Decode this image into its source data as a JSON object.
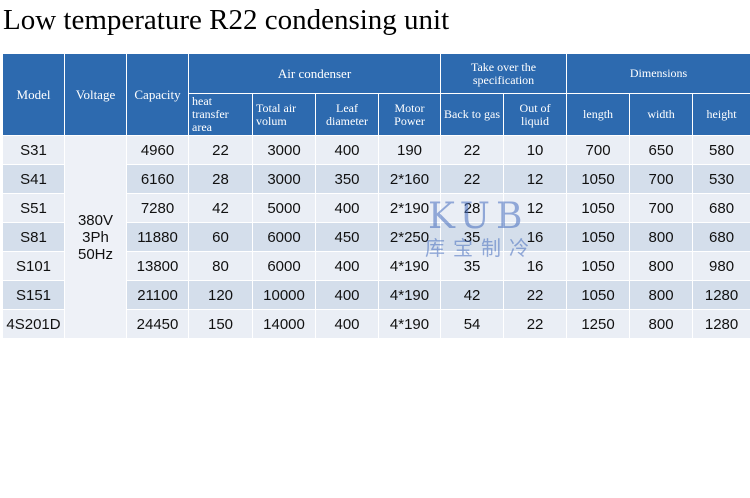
{
  "title": "Low temperature R22 condensing unit",
  "header": {
    "model": "Model",
    "voltage": "Voltage",
    "capacity": "Capacity",
    "air_condenser": {
      "title": "Air condenser",
      "columns": [
        "heat transfer area",
        "Total air volum",
        "Leaf diameter",
        "Motor Power"
      ]
    },
    "take_over": {
      "title": "Take over the specification",
      "columns": [
        "Back to gas",
        "Out of liquid"
      ]
    },
    "dimensions": {
      "title": "Dimensions",
      "columns": [
        "length",
        "width",
        "height"
      ]
    }
  },
  "voltage": [
    "380V",
    "3Ph",
    "50Hz"
  ],
  "rows": [
    [
      "S31",
      4960,
      22,
      3000,
      400,
      190,
      22,
      10,
      700,
      650,
      580
    ],
    [
      "S41",
      6160,
      28,
      3000,
      350,
      "2*160",
      22,
      12,
      1050,
      700,
      530
    ],
    [
      "S51",
      7280,
      42,
      5000,
      400,
      "2*190",
      28,
      12,
      1050,
      700,
      680
    ],
    [
      "S81",
      11880,
      60,
      6000,
      450,
      "2*250",
      35,
      16,
      1050,
      800,
      680
    ],
    [
      "S101",
      13800,
      80,
      6000,
      400,
      "4*190",
      35,
      16,
      1050,
      800,
      980
    ],
    [
      "S151",
      21100,
      120,
      10000,
      400,
      "4*190",
      42,
      22,
      1050,
      800,
      1280
    ],
    [
      "4S201D",
      24450,
      150,
      14000,
      400,
      "4*190",
      54,
      22,
      1250,
      800,
      1280
    ]
  ],
  "watermark": {
    "logo": "KUB",
    "text": "库宝制冷"
  }
}
